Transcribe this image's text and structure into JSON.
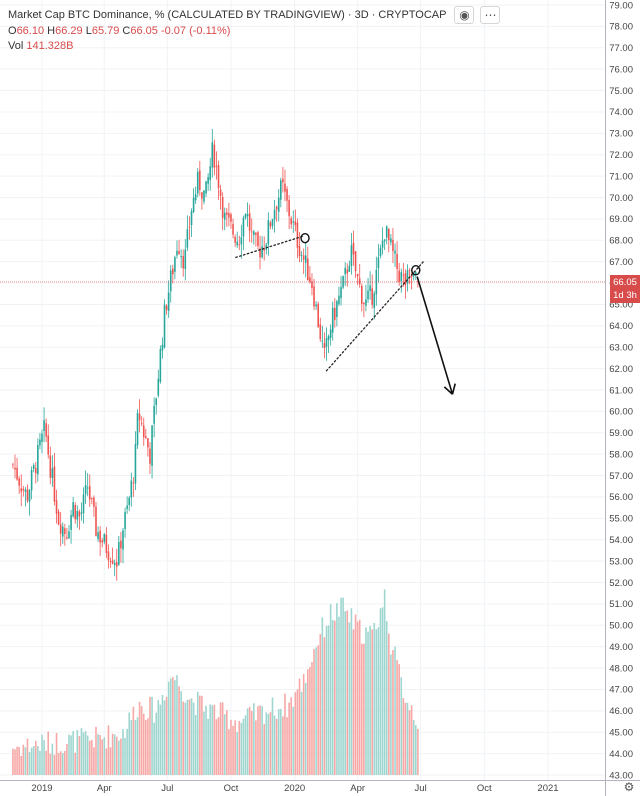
{
  "header": {
    "title": "Market Cap BTC Dominance, % (CALCULATED BY TRADINGVIEW) · 3D · CRYPTOCAP",
    "ohlc": {
      "o_label": "O",
      "o": "66.10",
      "h_label": "H",
      "h": "66.29",
      "l_label": "L",
      "l": "65.79",
      "c_label": "C",
      "c": "66.05",
      "change": "-0.07 (-0.11%)"
    },
    "vol_label": "Vol",
    "vol_value": "141.328B"
  },
  "price_tag": {
    "value": "66.05",
    "countdown": "1d 3h"
  },
  "colors": {
    "up": "#26a69a",
    "down": "#ef5350",
    "vol_up": "#9fd6d0",
    "vol_down": "#f5a8a6",
    "tag": "#d84b4b"
  },
  "chart_data": {
    "type": "candlestick",
    "title": "Market Cap BTC Dominance, %",
    "symbol": "CRYPTOCAP",
    "timeframe": "3D",
    "ylim": [
      43.0,
      79.0
    ],
    "y_ticks": [
      "79.00",
      "78.00",
      "77.00",
      "76.00",
      "75.00",
      "74.00",
      "73.00",
      "72.00",
      "71.00",
      "70.00",
      "69.00",
      "68.00",
      "67.00",
      "66.00",
      "65.00",
      "64.00",
      "63.00",
      "62.00",
      "61.00",
      "60.00",
      "59.00",
      "58.00",
      "57.00",
      "56.00",
      "55.00",
      "54.00",
      "53.00",
      "52.00",
      "51.00",
      "50.00",
      "49.00",
      "48.00",
      "47.00",
      "46.00",
      "45.00",
      "44.00",
      "43.00"
    ],
    "x_ticks": [
      "2019",
      "Apr",
      "Jul",
      "Oct",
      "2020",
      "Apr",
      "Jul",
      "Oct",
      "2021"
    ],
    "last_close": 66.05,
    "close_path": [
      {
        "date": "2018-11-20",
        "close": 57.5
      },
      {
        "date": "2018-12-10",
        "close": 56.0
      },
      {
        "date": "2018-12-25",
        "close": 57.8
      },
      {
        "date": "2019-01-05",
        "close": 59.2
      },
      {
        "date": "2019-01-15",
        "close": 57.0
      },
      {
        "date": "2019-01-25",
        "close": 55.0
      },
      {
        "date": "2019-02-05",
        "close": 54.3
      },
      {
        "date": "2019-02-15",
        "close": 55.6
      },
      {
        "date": "2019-02-25",
        "close": 55.0
      },
      {
        "date": "2019-03-08",
        "close": 56.5
      },
      {
        "date": "2019-03-20",
        "close": 54.5
      },
      {
        "date": "2019-04-05",
        "close": 53.6
      },
      {
        "date": "2019-04-20",
        "close": 53.0
      },
      {
        "date": "2019-04-28",
        "close": 54.6
      },
      {
        "date": "2019-05-05",
        "close": 55.5
      },
      {
        "date": "2019-05-15",
        "close": 57.5
      },
      {
        "date": "2019-05-20",
        "close": 60.0
      },
      {
        "date": "2019-05-28",
        "close": 59.0
      },
      {
        "date": "2019-06-06",
        "close": 58.0
      },
      {
        "date": "2019-06-14",
        "close": 60.5
      },
      {
        "date": "2019-06-22",
        "close": 63.0
      },
      {
        "date": "2019-06-28",
        "close": 64.8
      },
      {
        "date": "2019-07-08",
        "close": 66.5
      },
      {
        "date": "2019-07-16",
        "close": 68.0
      },
      {
        "date": "2019-07-26",
        "close": 67.0
      },
      {
        "date": "2019-08-05",
        "close": 69.5
      },
      {
        "date": "2019-08-15",
        "close": 70.8
      },
      {
        "date": "2019-08-25",
        "close": 70.0
      },
      {
        "date": "2019-09-05",
        "close": 72.3
      },
      {
        "date": "2019-09-12",
        "close": 71.0
      },
      {
        "date": "2019-09-22",
        "close": 69.0
      },
      {
        "date": "2019-10-02",
        "close": 68.5
      },
      {
        "date": "2019-10-12",
        "close": 68.0
      },
      {
        "date": "2019-10-22",
        "close": 69.5
      },
      {
        "date": "2019-11-01",
        "close": 68.0
      },
      {
        "date": "2019-11-10",
        "close": 67.5
      },
      {
        "date": "2019-11-20",
        "close": 68.0
      },
      {
        "date": "2019-12-02",
        "close": 69.5
      },
      {
        "date": "2019-12-14",
        "close": 70.5
      },
      {
        "date": "2019-12-24",
        "close": 69.3
      },
      {
        "date": "2020-01-05",
        "close": 68.0
      },
      {
        "date": "2020-01-15",
        "close": 67.0
      },
      {
        "date": "2020-01-26",
        "close": 66.0
      },
      {
        "date": "2020-02-05",
        "close": 64.0
      },
      {
        "date": "2020-02-13",
        "close": 62.5
      },
      {
        "date": "2020-02-22",
        "close": 64.0
      },
      {
        "date": "2020-03-02",
        "close": 65.0
      },
      {
        "date": "2020-03-12",
        "close": 66.0
      },
      {
        "date": "2020-03-22",
        "close": 67.5
      },
      {
        "date": "2020-04-02",
        "close": 66.0
      },
      {
        "date": "2020-04-12",
        "close": 65.0
      },
      {
        "date": "2020-04-22",
        "close": 65.5
      },
      {
        "date": "2020-05-02",
        "close": 67.0
      },
      {
        "date": "2020-05-10",
        "close": 68.5
      },
      {
        "date": "2020-05-20",
        "close": 67.5
      },
      {
        "date": "2020-05-30",
        "close": 66.5
      },
      {
        "date": "2020-06-08",
        "close": 66.0
      },
      {
        "date": "2020-06-18",
        "close": 66.3
      },
      {
        "date": "2020-06-28",
        "close": 66.05
      }
    ],
    "volume_path": [
      {
        "date": "2018-11-20",
        "value": 44.3
      },
      {
        "date": "2019-01-15",
        "value": 44.5
      },
      {
        "date": "2019-03-20",
        "value": 44.7
      },
      {
        "date": "2019-04-28",
        "value": 45.0
      },
      {
        "date": "2019-05-20",
        "value": 46.3
      },
      {
        "date": "2019-06-14",
        "value": 46.0
      },
      {
        "date": "2019-07-08",
        "value": 47.7
      },
      {
        "date": "2019-08-05",
        "value": 46.5
      },
      {
        "date": "2019-09-05",
        "value": 46.0
      },
      {
        "date": "2019-10-12",
        "value": 45.5
      },
      {
        "date": "2019-11-20",
        "value": 46.0
      },
      {
        "date": "2019-12-24",
        "value": 46.3
      },
      {
        "date": "2020-01-15",
        "value": 47.5
      },
      {
        "date": "2020-02-05",
        "value": 49.5
      },
      {
        "date": "2020-02-22",
        "value": 50.5
      },
      {
        "date": "2020-03-12",
        "value": 50.8
      },
      {
        "date": "2020-04-02",
        "value": 49.8
      },
      {
        "date": "2020-04-22",
        "value": 49.5
      },
      {
        "date": "2020-05-10",
        "value": 51.3
      },
      {
        "date": "2020-05-20",
        "value": 49.0
      },
      {
        "date": "2020-06-08",
        "value": 46.8
      },
      {
        "date": "2020-06-28",
        "value": 45.5
      }
    ],
    "trendlines": [
      {
        "from": {
          "date": "2019-10-08",
          "value": 67.2
        },
        "to": {
          "date": "2020-01-14",
          "value": 68.2
        },
        "style": "dotted"
      },
      {
        "from": {
          "date": "2020-02-16",
          "value": 61.9
        },
        "to": {
          "date": "2020-07-05",
          "value": 67.0
        },
        "style": "dotted"
      }
    ],
    "circles": [
      {
        "date": "2020-01-16",
        "value": 68.1
      },
      {
        "date": "2020-06-24",
        "value": 66.6
      }
    ],
    "arrow": {
      "from": {
        "date": "2020-06-26",
        "value": 66.3
      },
      "to": {
        "date": "2020-08-16",
        "value": 60.8
      }
    },
    "grid": true,
    "legend": "top-left"
  }
}
